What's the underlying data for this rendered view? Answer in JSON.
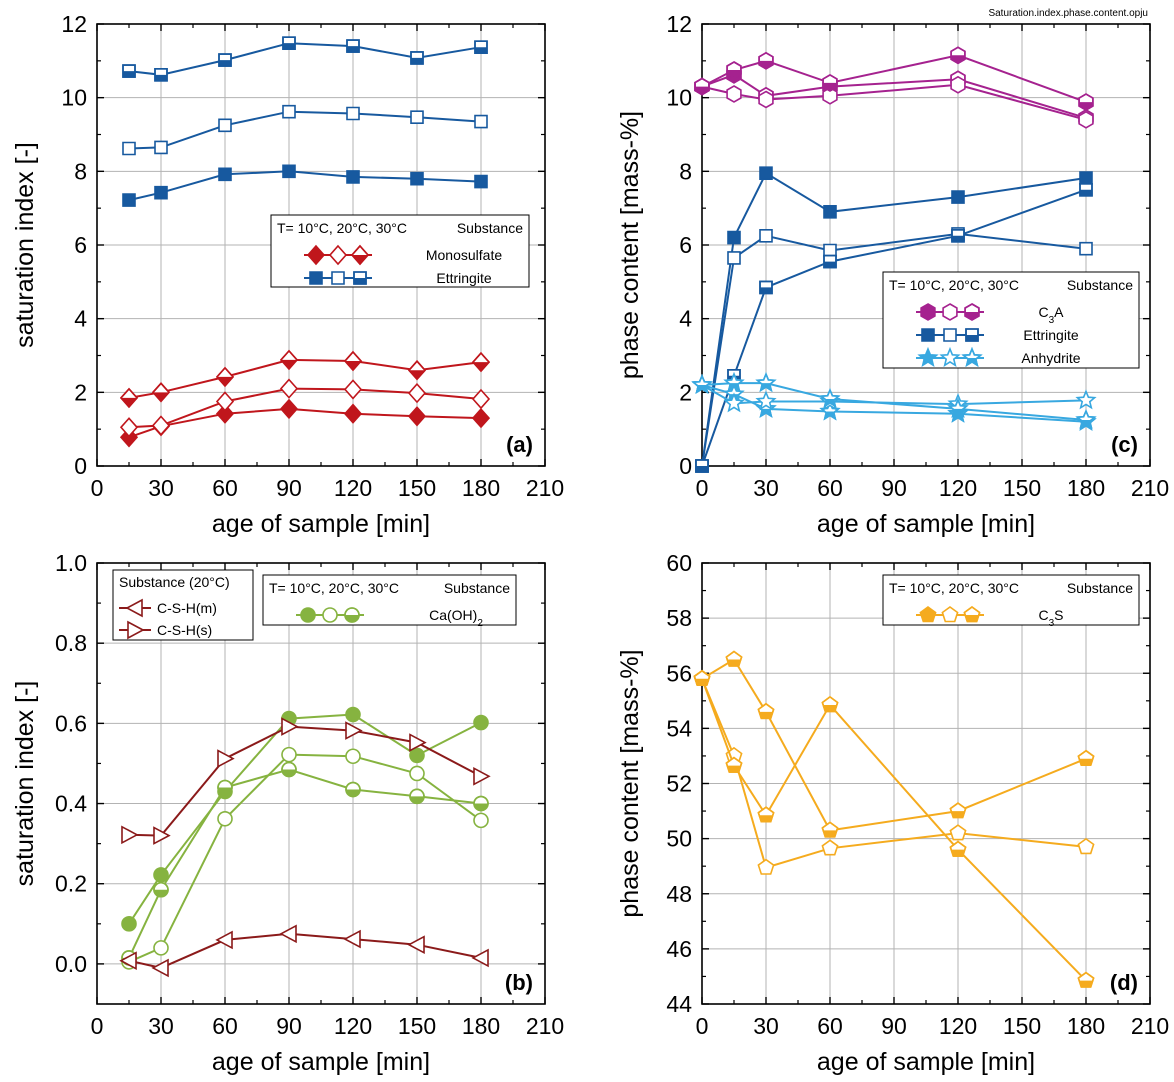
{
  "file_label": "Saturation.index.phase.content.opju",
  "chart_data": [
    {
      "id": "a",
      "type": "line",
      "panel_label": "(a)",
      "xlabel": "age of sample [min]",
      "ylabel": "saturation index [-]",
      "xlim": [
        0,
        210
      ],
      "ylim": [
        0,
        12
      ],
      "xticks": [
        0,
        30,
        60,
        90,
        120,
        150,
        180,
        210
      ],
      "yticks": [
        0,
        2,
        4,
        6,
        8,
        10,
        12
      ],
      "grid": true,
      "legend_placement": "center-right",
      "legend": {
        "header_left": "T= 10°C, 20°C, 30°C",
        "header_right": "Substance",
        "rows": [
          {
            "label": "Monosulfate",
            "label_parts": [
              [
                "Monosulfate",
                ""
              ]
            ],
            "color": "#c0161c",
            "marker": "diamond"
          },
          {
            "label": "Ettringite",
            "label_parts": [
              [
                "Ettringite",
                ""
              ]
            ],
            "color": "#17599f",
            "marker": "square"
          }
        ]
      },
      "series": [
        {
          "color": "#c0161c",
          "marker": "diamond",
          "fill": "full",
          "x": [
            15,
            30,
            60,
            90,
            120,
            150,
            180
          ],
          "y": [
            0.78,
            1.08,
            1.42,
            1.55,
            1.42,
            1.35,
            1.3
          ]
        },
        {
          "color": "#c0161c",
          "marker": "diamond",
          "fill": "none",
          "x": [
            15,
            30,
            60,
            90,
            120,
            150,
            180
          ],
          "y": [
            1.05,
            1.1,
            1.75,
            2.1,
            2.08,
            1.98,
            1.82
          ]
        },
        {
          "color": "#c0161c",
          "marker": "diamond",
          "fill": "half",
          "x": [
            15,
            30,
            60,
            90,
            120,
            150,
            180
          ],
          "y": [
            1.85,
            2.0,
            2.42,
            2.88,
            2.85,
            2.6,
            2.82
          ]
        },
        {
          "color": "#17599f",
          "marker": "square",
          "fill": "full",
          "x": [
            15,
            30,
            60,
            90,
            120,
            150,
            180
          ],
          "y": [
            7.22,
            7.42,
            7.92,
            8.0,
            7.85,
            7.8,
            7.72
          ]
        },
        {
          "color": "#17599f",
          "marker": "square",
          "fill": "none",
          "x": [
            15,
            30,
            60,
            90,
            120,
            150,
            180
          ],
          "y": [
            8.62,
            8.65,
            9.25,
            9.62,
            9.57,
            9.47,
            9.35
          ]
        },
        {
          "color": "#17599f",
          "marker": "square",
          "fill": "half",
          "x": [
            15,
            30,
            60,
            90,
            120,
            150,
            180
          ],
          "y": [
            10.72,
            10.62,
            11.02,
            11.48,
            11.4,
            11.08,
            11.37
          ]
        }
      ]
    },
    {
      "id": "c",
      "type": "line",
      "panel_label": "(c)",
      "xlabel": "age of sample [min]",
      "ylabel": "phase content [mass-%]",
      "xlim": [
        0,
        210
      ],
      "ylim": [
        0,
        12
      ],
      "xticks": [
        0,
        30,
        60,
        90,
        120,
        150,
        180,
        210
      ],
      "yticks": [
        0,
        2,
        4,
        6,
        8,
        10,
        12
      ],
      "grid": true,
      "legend_placement": "center-right",
      "legend": {
        "header_left": "T= 10°C, 20°C, 30°C",
        "header_right": "Substance",
        "rows": [
          {
            "label": "C3A",
            "label_parts": [
              [
                "C",
                ""
              ],
              [
                "3",
                "sub"
              ],
              [
                "A",
                ""
              ]
            ],
            "color": "#a5228f",
            "marker": "hexagon"
          },
          {
            "label": "Ettringite",
            "label_parts": [
              [
                "Ettringite",
                ""
              ]
            ],
            "color": "#17599f",
            "marker": "square"
          },
          {
            "label": "Anhydrite",
            "label_parts": [
              [
                "Anhydrite",
                ""
              ]
            ],
            "color": "#38a8e0",
            "marker": "star"
          }
        ]
      },
      "series": [
        {
          "color": "#a5228f",
          "marker": "hexagon",
          "fill": "half",
          "x": [
            0,
            15,
            30,
            60,
            120,
            180
          ],
          "y": [
            10.3,
            10.62,
            10.05,
            10.3,
            10.5,
            9.45
          ]
        },
        {
          "color": "#a5228f",
          "marker": "hexagon",
          "fill": "none",
          "x": [
            0,
            15,
            30,
            60,
            120,
            180
          ],
          "y": [
            10.3,
            10.1,
            9.95,
            10.05,
            10.35,
            9.4
          ]
        },
        {
          "color": "#a5228f",
          "marker": "hexagon",
          "fill": "half",
          "x": [
            0,
            15,
            30,
            60,
            120,
            180
          ],
          "y": [
            10.3,
            10.75,
            11.0,
            10.4,
            11.15,
            9.88
          ]
        },
        {
          "color": "#17599f",
          "marker": "square",
          "fill": "full",
          "x": [
            0,
            15,
            30,
            60,
            120,
            180
          ],
          "y": [
            0,
            6.2,
            7.95,
            6.9,
            7.3,
            7.82
          ]
        },
        {
          "color": "#17599f",
          "marker": "square",
          "fill": "none",
          "x": [
            0,
            15,
            30,
            60,
            120,
            180
          ],
          "y": [
            0,
            5.65,
            6.25,
            5.85,
            6.3,
            5.9
          ]
        },
        {
          "color": "#17599f",
          "marker": "square",
          "fill": "half",
          "x": [
            0,
            15,
            30,
            60,
            120,
            180
          ],
          "y": [
            0,
            2.45,
            4.85,
            5.55,
            6.25,
            7.5
          ]
        },
        {
          "color": "#38a8e0",
          "marker": "star",
          "fill": "half",
          "x": [
            0,
            15,
            30,
            60,
            120,
            180
          ],
          "y": [
            2.2,
            1.95,
            1.55,
            1.48,
            1.42,
            1.2
          ]
        },
        {
          "color": "#38a8e0",
          "marker": "star",
          "fill": "none",
          "x": [
            0,
            15,
            30,
            60,
            120,
            180
          ],
          "y": [
            2.2,
            1.7,
            1.75,
            1.75,
            1.68,
            1.78
          ]
        },
        {
          "color": "#38a8e0",
          "marker": "star",
          "fill": "half",
          "x": [
            0,
            15,
            30,
            60,
            120,
            180
          ],
          "y": [
            2.2,
            2.25,
            2.25,
            1.82,
            1.55,
            1.25
          ]
        }
      ]
    },
    {
      "id": "b",
      "type": "line",
      "panel_label": "(b)",
      "xlabel": "age of sample [min]",
      "ylabel": "saturation index [-]",
      "xlim": [
        0,
        210
      ],
      "ylim": [
        -0.1,
        1.0
      ],
      "xticks": [
        0,
        30,
        60,
        90,
        120,
        150,
        180,
        210
      ],
      "yticks": [
        0.0,
        0.2,
        0.4,
        0.6,
        0.8,
        1.0
      ],
      "ytick_labels": [
        "0.0",
        "0.2",
        "0.4",
        "0.6",
        "0.8",
        "1.0"
      ],
      "grid": true,
      "legend_placement": "top-left",
      "legend_secondary_placement": "top-center",
      "legend": {
        "header_left": "T= 10°C, 20°C, 30°C",
        "header_right": "Substance",
        "rows": [
          {
            "label": "Ca(OH)2",
            "label_parts": [
              [
                "Ca(OH)",
                ""
              ],
              [
                "2",
                "sub"
              ]
            ],
            "color": "#86b340",
            "marker": "circle"
          }
        ]
      },
      "legend_secondary": {
        "title": "Substance (20°C)",
        "rows": [
          {
            "label": "C-S-H(m)",
            "color": "#8b1a1a",
            "marker": "tri-left"
          },
          {
            "label": "C-S-H(s)",
            "color": "#8b1a1a",
            "marker": "tri-right"
          }
        ]
      },
      "series": [
        {
          "color": "#86b340",
          "marker": "circle",
          "fill": "full",
          "x": [
            15,
            30,
            60,
            90,
            120,
            150,
            180
          ],
          "y": [
            0.1,
            0.222,
            0.43,
            0.612,
            0.622,
            0.52,
            0.602
          ]
        },
        {
          "color": "#86b340",
          "marker": "circle",
          "fill": "none",
          "x": [
            15,
            30,
            60,
            90,
            120,
            150,
            180
          ],
          "y": [
            0.005,
            0.04,
            0.362,
            0.522,
            0.518,
            0.475,
            0.358
          ]
        },
        {
          "color": "#86b340",
          "marker": "circle",
          "fill": "half",
          "x": [
            15,
            30,
            60,
            90,
            120,
            150,
            180
          ],
          "y": [
            0.015,
            0.185,
            0.44,
            0.485,
            0.435,
            0.418,
            0.4
          ]
        },
        {
          "color": "#8b1a1a",
          "marker": "tri-left",
          "fill": "none",
          "x": [
            15,
            30,
            60,
            90,
            120,
            150,
            180
          ],
          "y": [
            0.008,
            -0.01,
            0.06,
            0.075,
            0.062,
            0.048,
            0.015
          ]
        },
        {
          "color": "#8b1a1a",
          "marker": "tri-right",
          "fill": "none",
          "x": [
            15,
            30,
            60,
            90,
            120,
            150,
            180
          ],
          "y": [
            0.322,
            0.32,
            0.512,
            0.592,
            0.582,
            0.552,
            0.468
          ]
        }
      ]
    },
    {
      "id": "d",
      "type": "line",
      "panel_label": "(d)",
      "xlabel": "age of sample [min]",
      "ylabel": "phase content [mass-%]",
      "xlim": [
        0,
        210
      ],
      "ylim": [
        44,
        60
      ],
      "xticks": [
        0,
        30,
        60,
        90,
        120,
        150,
        180,
        210
      ],
      "yticks": [
        44,
        46,
        48,
        50,
        52,
        54,
        56,
        58,
        60
      ],
      "grid": true,
      "legend_placement": "top-right",
      "legend": {
        "header_left": "T= 10°C, 20°C, 30°C",
        "header_right": "Substance",
        "rows": [
          {
            "label": "C3S",
            "label_parts": [
              [
                "C",
                ""
              ],
              [
                "3",
                "sub"
              ],
              [
                "S",
                ""
              ]
            ],
            "color": "#f5ab1e",
            "marker": "pentagon"
          }
        ]
      },
      "series": [
        {
          "color": "#f5ab1e",
          "marker": "pentagon",
          "fill": "half",
          "x": [
            0,
            15,
            30,
            60,
            120,
            180
          ],
          "y": [
            55.8,
            56.5,
            54.6,
            50.3,
            51.0,
            52.9
          ]
        },
        {
          "color": "#f5ab1e",
          "marker": "pentagon",
          "fill": "none",
          "x": [
            0,
            15,
            30,
            60,
            120,
            180
          ],
          "y": [
            55.8,
            53.0,
            48.95,
            49.65,
            50.2,
            49.7
          ]
        },
        {
          "color": "#f5ab1e",
          "marker": "pentagon",
          "fill": "half",
          "x": [
            0,
            15,
            30,
            60,
            120,
            180
          ],
          "y": [
            55.8,
            52.65,
            50.85,
            54.85,
            49.6,
            44.85
          ]
        }
      ]
    }
  ]
}
